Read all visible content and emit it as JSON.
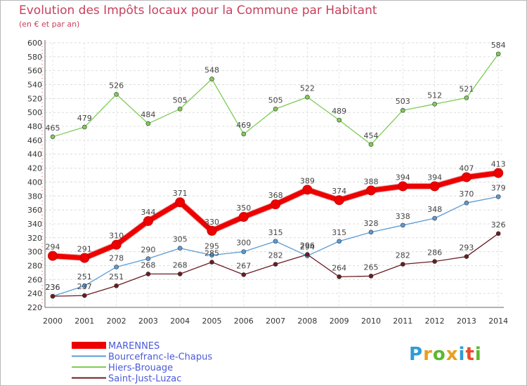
{
  "chart_data": {
    "type": "line",
    "title": "Evolution des Impôts locaux pour la Commune par Habitant",
    "subtitle": "(en € et par an)",
    "x": [
      "2000",
      "2001",
      "2002",
      "2003",
      "2004",
      "2005",
      "2006",
      "2007",
      "2008",
      "2009",
      "2010",
      "2011",
      "2012",
      "2013",
      "2014"
    ],
    "yticks": [
      220,
      240,
      260,
      280,
      300,
      320,
      340,
      360,
      380,
      400,
      420,
      440,
      460,
      480,
      500,
      520,
      540,
      560,
      580,
      600
    ],
    "ylim": [
      220,
      600
    ],
    "grid": true,
    "legend_position": "bottom-left",
    "series": [
      {
        "name": "MARENNES",
        "color": "#ee0000",
        "values": [
          294,
          291,
          310,
          344,
          371,
          330,
          350,
          368,
          389,
          374,
          388,
          394,
          394,
          407,
          413
        ]
      },
      {
        "name": "Bourcefranc-le-Chapus",
        "color": "#5b9bd5",
        "values": [
          236,
          251,
          278,
          290,
          305,
          295,
          300,
          315,
          294,
          315,
          328,
          338,
          348,
          370,
          379
        ]
      },
      {
        "name": "Hiers-Brouage",
        "color": "#7dcc55",
        "values": [
          465,
          479,
          526,
          484,
          505,
          548,
          469,
          505,
          522,
          489,
          454,
          503,
          512,
          521,
          584
        ]
      },
      {
        "name": "Saint-Just-Luzac",
        "color": "#6b1c22",
        "values": [
          236,
          237,
          251,
          268,
          268,
          285,
          267,
          282,
          296,
          264,
          265,
          282,
          286,
          293,
          326
        ]
      }
    ]
  },
  "brand": {
    "letters": [
      {
        "ch": "P",
        "color": "#2f9bd8"
      },
      {
        "ch": "r",
        "color": "#e8a020"
      },
      {
        "ch": "o",
        "color": "#5bb830"
      },
      {
        "ch": "x",
        "color": "#e8a020"
      },
      {
        "ch": "i",
        "color": "#2f9bd8"
      },
      {
        "ch": "t",
        "color": "#e84b2c"
      },
      {
        "ch": "i",
        "color": "#5bb830"
      }
    ]
  }
}
